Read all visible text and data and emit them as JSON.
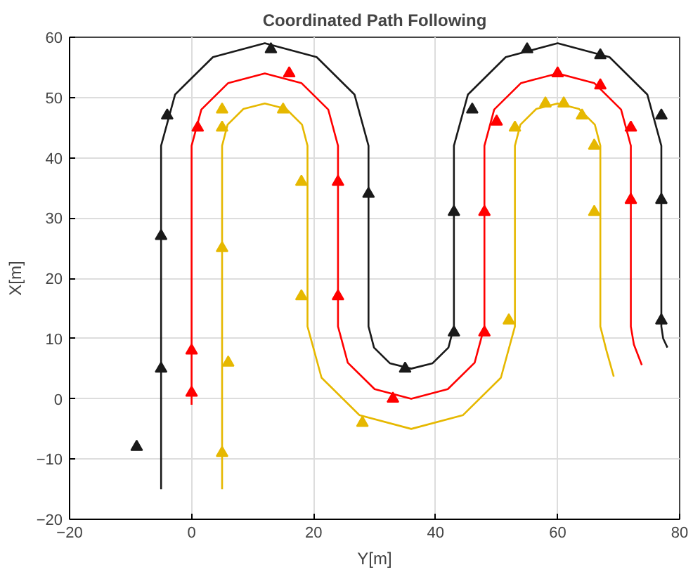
{
  "chart_data": {
    "type": "line",
    "title": "Coordinated Path Following",
    "xlabel": "Y[m]",
    "ylabel": "X[m]",
    "xlim": [
      -20,
      80
    ],
    "ylim": [
      -20,
      60
    ],
    "xticks": [
      -20,
      0,
      20,
      40,
      60,
      80
    ],
    "yticks": [
      -20,
      -10,
      0,
      10,
      20,
      30,
      40,
      50,
      60
    ],
    "grid": true,
    "marker": "none",
    "line_style": "solid",
    "series": [
      {
        "color": "#1a1a1a",
        "x": [
          -5,
          -5,
          -2.7,
          3.5,
          12,
          20.5,
          26.7,
          29,
          29,
          29.9,
          32.5,
          36,
          39.5,
          42.1,
          43,
          43,
          45.3,
          51.5,
          60,
          68.5,
          74.7,
          77,
          77,
          77.3,
          78
        ],
        "values": [
          -15,
          42,
          50.5,
          56.7,
          59,
          56.7,
          50.5,
          42,
          12,
          8.5,
          5.9,
          5,
          5.9,
          8.5,
          12,
          42,
          50.5,
          56.7,
          59,
          56.7,
          50.5,
          42,
          12,
          10,
          8.5
        ]
      },
      {
        "color": "#ff0000",
        "x": [
          0,
          0,
          1.6,
          6,
          12,
          18,
          22.4,
          24,
          24,
          25.6,
          30,
          36,
          42,
          46.4,
          48,
          48,
          49.6,
          54,
          60,
          66,
          70.4,
          72,
          72,
          72.5,
          73.8
        ],
        "values": [
          -1,
          42,
          48,
          52.4,
          54,
          52.4,
          48,
          42,
          12,
          6,
          1.6,
          0,
          1.6,
          6,
          12,
          42,
          48,
          52.4,
          54,
          52.4,
          48,
          42,
          12,
          9,
          5.6
        ]
      },
      {
        "color": "#e6b800",
        "x": [
          5,
          5,
          5.9,
          8.5,
          12,
          15.5,
          18.1,
          19,
          19,
          21.3,
          27.5,
          36,
          44.5,
          50.7,
          53,
          53,
          53.9,
          56.5,
          60,
          63.5,
          66.1,
          67,
          67,
          68,
          69.2
        ],
        "values": [
          -15,
          42,
          45.5,
          48.1,
          49,
          48.1,
          45.5,
          42,
          12,
          3.5,
          -2.7,
          -5,
          -2.7,
          3.5,
          12,
          42,
          45.5,
          48.1,
          49,
          48.1,
          45.5,
          42,
          12,
          8,
          3.7
        ]
      },
      {
        "type": "scatter",
        "marker": "triangle",
        "color": "#1a1a1a",
        "x": [
          -9,
          -5,
          -5,
          -4,
          13,
          29,
          35,
          43,
          43,
          46,
          55,
          67,
          77,
          77,
          77
        ],
        "values": [
          -8,
          5,
          27,
          47,
          58,
          34,
          5,
          11,
          31,
          48,
          58,
          57,
          47,
          33,
          13
        ]
      },
      {
        "type": "scatter",
        "marker": "triangle",
        "color": "#ff0000",
        "x": [
          0,
          0,
          1,
          16,
          24,
          24,
          33,
          48,
          48,
          50,
          60,
          67,
          72,
          72
        ],
        "values": [
          1,
          8,
          45,
          54,
          36,
          17,
          0,
          11,
          31,
          46,
          54,
          52,
          45,
          33
        ]
      },
      {
        "type": "scatter",
        "marker": "triangle",
        "color": "#e6b800",
        "x": [
          5,
          6,
          5,
          5,
          5,
          15,
          18,
          18,
          28,
          52,
          53,
          58,
          61,
          64,
          66,
          66
        ],
        "values": [
          -9,
          6,
          25,
          45,
          48,
          48,
          36,
          17,
          -4,
          13,
          45,
          49,
          49,
          47,
          42,
          31
        ]
      }
    ]
  }
}
